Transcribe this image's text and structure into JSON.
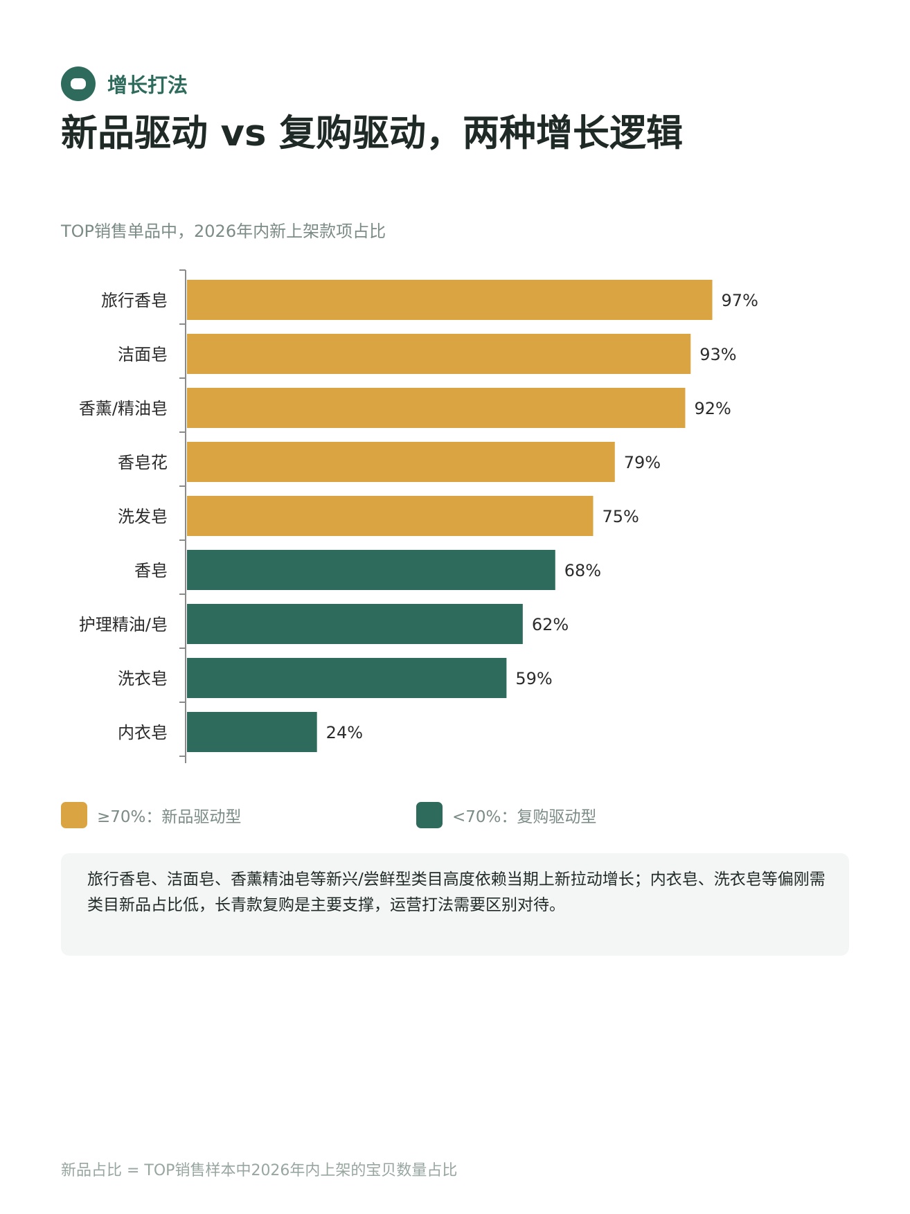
{
  "header": {
    "tag_label": "增长打法",
    "title": "新品驱动 vs 复购驱动，两种增长逻辑",
    "subtitle": "TOP销售单品中，2026年内新上架款项占比"
  },
  "chart_data": {
    "type": "bar",
    "orientation": "horizontal",
    "categories": [
      "旅行香皂",
      "洁面皂",
      "香薰/精油皂",
      "香皂花",
      "洗发皂",
      "香皂",
      "护理精油/皂",
      "洗衣皂",
      "内衣皂"
    ],
    "values": [
      97,
      93,
      92,
      79,
      75,
      68,
      62,
      59,
      24
    ],
    "value_labels": [
      "97%",
      "93%",
      "92%",
      "79%",
      "75%",
      "68%",
      "62%",
      "59%",
      "24%"
    ],
    "unit": "%",
    "xlim": [
      0,
      100
    ],
    "threshold": 70,
    "colors": {
      "high": "#d9a441",
      "low": "#2e6b5c"
    },
    "grid": false
  },
  "legend": [
    {
      "label": "≥70%：新品驱动型",
      "color": "#d9a441"
    },
    {
      "label": "<70%：复购驱动型",
      "color": "#2e6b5c"
    }
  ],
  "note": "旅行香皂、洁面皂、香薰精油皂等新兴/尝鲜型类目高度依赖当期上新拉动增长；内衣皂、洗衣皂等偏刚需类目新品占比低，长青款复购是主要支撑，运营打法需要区别对待。",
  "footer": "新品占比 = TOP销售样本中2026年内上架的宝贝数量占比",
  "icons": {
    "tag": "pill-badge-icon"
  }
}
